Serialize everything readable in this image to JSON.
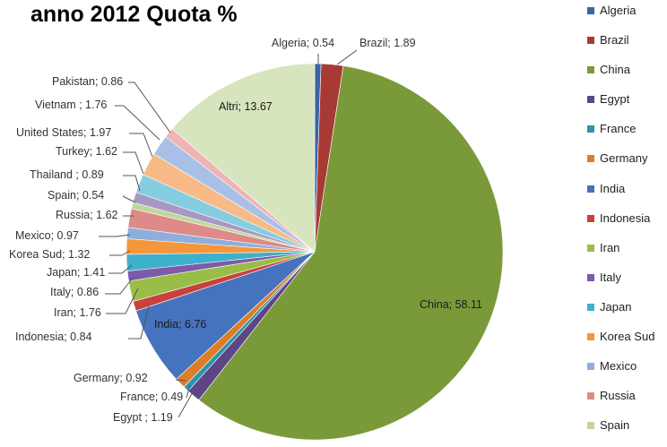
{
  "chart_data": {
    "type": "pie",
    "title": "anno 2012 Quota %",
    "legend_position": "right",
    "slices": [
      {
        "name": "Algeria",
        "value": 0.54,
        "label": "Algeria; 0.54",
        "color": "#3A65A4"
      },
      {
        "name": "Brazil",
        "value": 1.89,
        "label": "Brazil; 1.89",
        "color": "#A83A36"
      },
      {
        "name": "China",
        "value": 58.11,
        "label": "China; 58.11",
        "color": "#7A9A3A"
      },
      {
        "name": "Egypt",
        "value": 1.19,
        "label": "Egypt  ; 1.19",
        "color": "#5E4585"
      },
      {
        "name": "France",
        "value": 0.49,
        "label": "France; 0.49",
        "color": "#2E93AE"
      },
      {
        "name": "Germany",
        "value": 0.92,
        "label": "Germany; 0.92",
        "color": "#DD7D28"
      },
      {
        "name": "India",
        "value": 6.76,
        "label": "India; 6.76",
        "color": "#4673BE"
      },
      {
        "name": "Indonesia",
        "value": 0.84,
        "label": "Indonesia; 0.84",
        "color": "#C8413C"
      },
      {
        "name": "Iran",
        "value": 1.76,
        "label": "Iran; 1.76",
        "color": "#98BE48"
      },
      {
        "name": "Italy",
        "value": 0.86,
        "label": "Italy; 0.86",
        "color": "#7D5BA8"
      },
      {
        "name": "Japan",
        "value": 1.41,
        "label": "Japan; 1.41",
        "color": "#3DB0CC"
      },
      {
        "name": "Korea Sud",
        "value": 1.32,
        "label": "Korea Sud; 1.32",
        "color": "#F5963A"
      },
      {
        "name": "Mexico",
        "value": 0.97,
        "label": "Mexico; 0.97",
        "color": "#8FAEDC"
      },
      {
        "name": "Russia",
        "value": 1.62,
        "label": "Russia; 1.62",
        "color": "#DE8A88"
      },
      {
        "name": "Spain",
        "value": 0.54,
        "label": "Spain; 0.54",
        "color": "#BFD79A"
      },
      {
        "name": "Thailand",
        "value": 0.89,
        "label": "Thailand ; 0.89",
        "color": "#A898C4"
      },
      {
        "name": "Turkey",
        "value": 1.62,
        "label": "Turkey; 1.62",
        "color": "#86CDE0"
      },
      {
        "name": "United States",
        "value": 1.97,
        "label": "United States; 1.97",
        "color": "#F8BA86"
      },
      {
        "name": "Vietnam",
        "value": 1.76,
        "label": "Vietnam ; 1.76",
        "color": "#A9C0E6"
      },
      {
        "name": "Pakistan",
        "value": 0.86,
        "label": "Pakistan; 0.86",
        "color": "#EFB4B4"
      },
      {
        "name": "Altri",
        "value": 13.67,
        "label": "Altri; 13.67",
        "color": "#D7E5BE"
      }
    ],
    "legend_entries": [
      "Algeria",
      "Brazil",
      "China",
      "Egypt",
      "France",
      "Germany",
      "India",
      "Indonesia",
      "Iran",
      "Italy",
      "Japan",
      "Korea Sud",
      "Mexico",
      "Russia",
      "Spain"
    ]
  }
}
